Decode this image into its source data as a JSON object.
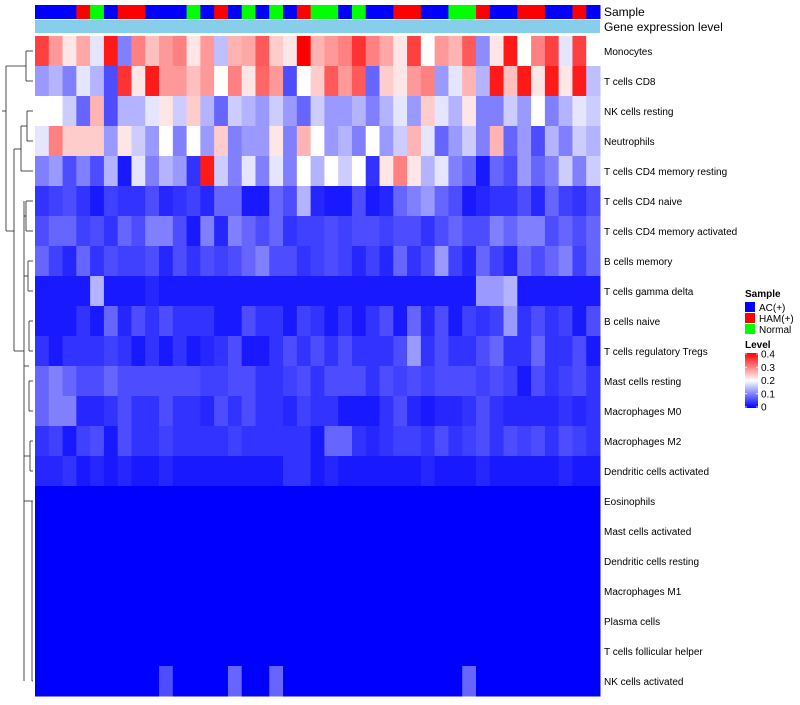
{
  "chart_data": {
    "type": "heatmap",
    "annotation_row_labels": [
      "Sample",
      "Gene expression level"
    ],
    "cell_types": [
      "Monocytes",
      "T cells CD8",
      "NK cells resting",
      "Neutrophils",
      "T cells CD4 memory resting",
      "T cells CD4 naive",
      "T cells CD4 memory activated",
      "B cells memory",
      "T cells gamma delta",
      "B cells naive",
      "T cells regulatory  Tregs",
      "Mast cells resting",
      "Macrophages M0",
      "Macrophages M2",
      "Dendritic cells activated",
      "Eosinophils",
      "Mast cells activated",
      "Dendritic cells resting",
      "Macrophages M1",
      "Plasma cells",
      "T cells follicular helper",
      "NK cells activated"
    ],
    "sample_groups": [
      "AC(+)",
      "AC(+)",
      "AC(+)",
      "HAM(+)",
      "Normal",
      "AC(+)",
      "HAM(+)",
      "HAM(+)",
      "AC(+)",
      "AC(+)",
      "AC(+)",
      "Normal",
      "AC(+)",
      "HAM(+)",
      "AC(+)",
      "Normal",
      "AC(+)",
      "Normal",
      "AC(+)",
      "HAM(+)",
      "Normal",
      "Normal",
      "AC(+)",
      "Normal",
      "AC(+)",
      "AC(+)",
      "HAM(+)",
      "HAM(+)",
      "AC(+)",
      "AC(+)",
      "Normal",
      "Normal",
      "HAM(+)",
      "AC(+)",
      "AC(+)",
      "HAM(+)",
      "HAM(+)",
      "AC(+)",
      "AC(+)",
      "HAM(+)",
      "AC(+)"
    ],
    "values": [
      [
        0.35,
        0.28,
        0.22,
        0.27,
        0.18,
        0.38,
        0.1,
        0.3,
        0.25,
        0.28,
        0.3,
        0.22,
        0.28,
        0.15,
        0.26,
        0.27,
        0.33,
        0.24,
        0.22,
        0.4,
        0.26,
        0.28,
        0.3,
        0.36,
        0.3,
        0.27,
        0.22,
        0.35,
        0.2,
        0.28,
        0.26,
        0.33,
        0.11,
        0.22,
        0.38,
        0.2,
        0.3,
        0.35,
        0.18,
        0.35,
        0.2
      ],
      [
        0.12,
        0.14,
        0.1,
        0.18,
        0.14,
        0.06,
        0.36,
        0.22,
        0.38,
        0.28,
        0.28,
        0.25,
        0.28,
        0.2,
        0.3,
        0.22,
        0.32,
        0.28,
        0.06,
        0.2,
        0.24,
        0.33,
        0.28,
        0.33,
        0.08,
        0.24,
        0.22,
        0.28,
        0.3,
        0.12,
        0.18,
        0.26,
        0.14,
        0.38,
        0.25,
        0.38,
        0.22,
        0.38,
        0.22,
        0.38,
        0.15
      ],
      [
        0.2,
        0.2,
        0.16,
        0.08,
        0.26,
        0.06,
        0.14,
        0.14,
        0.18,
        0.22,
        0.16,
        0.24,
        0.14,
        0.08,
        0.16,
        0.14,
        0.12,
        0.16,
        0.12,
        0.08,
        0.16,
        0.12,
        0.12,
        0.14,
        0.1,
        0.14,
        0.18,
        0.12,
        0.24,
        0.18,
        0.14,
        0.22,
        0.1,
        0.1,
        0.16,
        0.12,
        0.2,
        0.1,
        0.14,
        0.18,
        0.16
      ],
      [
        0.18,
        0.3,
        0.24,
        0.24,
        0.24,
        0.12,
        0.22,
        0.16,
        0.12,
        0.2,
        0.1,
        0.2,
        0.12,
        0.24,
        0.1,
        0.12,
        0.12,
        0.22,
        0.1,
        0.26,
        0.2,
        0.12,
        0.14,
        0.1,
        0.2,
        0.12,
        0.16,
        0.26,
        0.18,
        0.08,
        0.12,
        0.16,
        0.1,
        0.26,
        0.08,
        0.12,
        0.06,
        0.14,
        0.1,
        0.16,
        0.14
      ],
      [
        0.1,
        0.12,
        0.06,
        0.1,
        0.06,
        0.14,
        0.02,
        0.18,
        0.1,
        0.14,
        0.12,
        0.04,
        0.38,
        0.16,
        0.1,
        0.18,
        0.1,
        0.18,
        0.1,
        0.2,
        0.14,
        0.2,
        0.16,
        0.2,
        0.04,
        0.22,
        0.3,
        0.22,
        0.14,
        0.18,
        0.1,
        0.08,
        0.02,
        0.08,
        0.06,
        0.12,
        0.08,
        0.1,
        0.16,
        0.1,
        0.16
      ],
      [
        0.04,
        0.05,
        0.06,
        0.04,
        0.02,
        0.05,
        0.04,
        0.04,
        0.06,
        0.03,
        0.04,
        0.05,
        0.03,
        0.08,
        0.08,
        0.02,
        0.02,
        0.08,
        0.06,
        0.14,
        0.03,
        0.02,
        0.02,
        0.06,
        0.02,
        0.03,
        0.08,
        0.1,
        0.12,
        0.08,
        0.06,
        0.02,
        0.03,
        0.04,
        0.04,
        0.06,
        0.03,
        0.08,
        0.05,
        0.04,
        0.06
      ],
      [
        0.06,
        0.08,
        0.08,
        0.05,
        0.06,
        0.04,
        0.08,
        0.06,
        0.1,
        0.1,
        0.06,
        0.02,
        0.1,
        0.03,
        0.1,
        0.08,
        0.06,
        0.08,
        0.04,
        0.05,
        0.05,
        0.06,
        0.05,
        0.06,
        0.06,
        0.05,
        0.06,
        0.06,
        0.04,
        0.06,
        0.08,
        0.06,
        0.06,
        0.1,
        0.08,
        0.1,
        0.1,
        0.06,
        0.08,
        0.06,
        0.08
      ],
      [
        0.08,
        0.05,
        0.03,
        0.08,
        0.04,
        0.06,
        0.05,
        0.05,
        0.06,
        0.03,
        0.06,
        0.04,
        0.06,
        0.05,
        0.06,
        0.08,
        0.1,
        0.06,
        0.06,
        0.04,
        0.05,
        0.06,
        0.05,
        0.03,
        0.05,
        0.03,
        0.08,
        0.04,
        0.06,
        0.12,
        0.05,
        0.03,
        0.08,
        0.05,
        0.03,
        0.08,
        0.06,
        0.08,
        0.1,
        0.05,
        0.08
      ],
      [
        0.02,
        0.02,
        0.02,
        0.02,
        0.14,
        0.02,
        0.02,
        0.02,
        0.03,
        0.02,
        0.02,
        0.02,
        0.02,
        0.02,
        0.02,
        0.02,
        0.02,
        0.02,
        0.02,
        0.02,
        0.02,
        0.02,
        0.02,
        0.02,
        0.02,
        0.02,
        0.02,
        0.02,
        0.02,
        0.02,
        0.02,
        0.02,
        0.12,
        0.12,
        0.14,
        0.02,
        0.02,
        0.02,
        0.02,
        0.02,
        0.02
      ],
      [
        0.02,
        0.02,
        0.02,
        0.04,
        0.02,
        0.08,
        0.03,
        0.06,
        0.04,
        0.06,
        0.04,
        0.04,
        0.04,
        0.02,
        0.02,
        0.06,
        0.04,
        0.04,
        0.02,
        0.05,
        0.04,
        0.02,
        0.04,
        0.02,
        0.04,
        0.06,
        0.02,
        0.08,
        0.03,
        0.06,
        0.02,
        0.05,
        0.04,
        0.05,
        0.12,
        0.04,
        0.06,
        0.04,
        0.05,
        0.02,
        0.06
      ],
      [
        0.04,
        0.02,
        0.04,
        0.04,
        0.04,
        0.05,
        0.04,
        0.02,
        0.04,
        0.02,
        0.04,
        0.02,
        0.03,
        0.04,
        0.06,
        0.02,
        0.02,
        0.04,
        0.06,
        0.04,
        0.06,
        0.04,
        0.06,
        0.04,
        0.04,
        0.04,
        0.06,
        0.12,
        0.04,
        0.06,
        0.04,
        0.04,
        0.06,
        0.08,
        0.04,
        0.04,
        0.08,
        0.04,
        0.04,
        0.06,
        0.02
      ],
      [
        0.08,
        0.1,
        0.08,
        0.06,
        0.06,
        0.08,
        0.06,
        0.06,
        0.06,
        0.06,
        0.06,
        0.06,
        0.05,
        0.05,
        0.06,
        0.06,
        0.04,
        0.04,
        0.05,
        0.06,
        0.04,
        0.06,
        0.06,
        0.06,
        0.04,
        0.06,
        0.05,
        0.06,
        0.05,
        0.06,
        0.06,
        0.06,
        0.05,
        0.06,
        0.05,
        0.02,
        0.06,
        0.04,
        0.05,
        0.06,
        0.04
      ],
      [
        0.08,
        0.1,
        0.1,
        0.03,
        0.03,
        0.04,
        0.06,
        0.04,
        0.04,
        0.06,
        0.04,
        0.04,
        0.03,
        0.06,
        0.04,
        0.06,
        0.04,
        0.04,
        0.03,
        0.05,
        0.04,
        0.04,
        0.02,
        0.02,
        0.02,
        0.04,
        0.06,
        0.03,
        0.02,
        0.03,
        0.03,
        0.04,
        0.06,
        0.04,
        0.03,
        0.03,
        0.03,
        0.03,
        0.04,
        0.03,
        0.04
      ],
      [
        0.04,
        0.05,
        0.02,
        0.05,
        0.06,
        0.02,
        0.06,
        0.04,
        0.04,
        0.05,
        0.04,
        0.04,
        0.04,
        0.04,
        0.05,
        0.04,
        0.04,
        0.04,
        0.04,
        0.04,
        0.02,
        0.08,
        0.08,
        0.04,
        0.03,
        0.04,
        0.05,
        0.05,
        0.04,
        0.06,
        0.04,
        0.05,
        0.06,
        0.04,
        0.06,
        0.05,
        0.06,
        0.04,
        0.06,
        0.05,
        0.04
      ],
      [
        0.03,
        0.03,
        0.04,
        0.02,
        0.03,
        0.02,
        0.03,
        0.02,
        0.02,
        0.03,
        0.02,
        0.02,
        0.02,
        0.02,
        0.02,
        0.02,
        0.02,
        0.02,
        0.04,
        0.04,
        0.02,
        0.03,
        0.02,
        0.02,
        0.02,
        0.02,
        0.02,
        0.02,
        0.03,
        0.02,
        0.02,
        0.02,
        0.03,
        0.02,
        0.02,
        0.02,
        0.02,
        0.02,
        0.03,
        0.02,
        0.02
      ],
      [
        0,
        0,
        0,
        0,
        0,
        0,
        0,
        0,
        0,
        0,
        0,
        0,
        0,
        0,
        0,
        0,
        0,
        0,
        0,
        0,
        0,
        0,
        0,
        0,
        0,
        0,
        0,
        0,
        0,
        0,
        0,
        0,
        0,
        0,
        0,
        0,
        0,
        0,
        0,
        0,
        0
      ],
      [
        0,
        0,
        0,
        0,
        0,
        0,
        0,
        0,
        0,
        0,
        0,
        0,
        0,
        0,
        0,
        0,
        0,
        0,
        0,
        0,
        0,
        0,
        0,
        0,
        0,
        0,
        0,
        0,
        0,
        0,
        0,
        0,
        0,
        0,
        0,
        0,
        0,
        0,
        0,
        0,
        0
      ],
      [
        0,
        0,
        0,
        0,
        0,
        0,
        0,
        0,
        0,
        0,
        0,
        0,
        0,
        0,
        0,
        0,
        0,
        0,
        0,
        0,
        0,
        0,
        0,
        0,
        0,
        0,
        0,
        0,
        0,
        0,
        0,
        0,
        0,
        0,
        0,
        0,
        0,
        0,
        0,
        0,
        0
      ],
      [
        0,
        0,
        0,
        0,
        0,
        0,
        0,
        0,
        0,
        0,
        0,
        0,
        0,
        0,
        0,
        0,
        0,
        0,
        0,
        0,
        0,
        0,
        0,
        0,
        0,
        0,
        0,
        0,
        0,
        0,
        0,
        0,
        0,
        0,
        0,
        0,
        0,
        0,
        0,
        0,
        0
      ],
      [
        0,
        0,
        0,
        0,
        0,
        0,
        0,
        0,
        0,
        0,
        0,
        0,
        0,
        0,
        0,
        0,
        0,
        0,
        0,
        0,
        0,
        0,
        0,
        0,
        0,
        0,
        0,
        0,
        0,
        0,
        0,
        0,
        0,
        0,
        0,
        0,
        0,
        0,
        0,
        0,
        0
      ],
      [
        0,
        0,
        0,
        0,
        0,
        0,
        0,
        0,
        0,
        0,
        0,
        0,
        0,
        0,
        0,
        0,
        0,
        0,
        0,
        0,
        0,
        0,
        0,
        0,
        0,
        0,
        0,
        0,
        0,
        0,
        0,
        0,
        0,
        0,
        0,
        0,
        0,
        0,
        0,
        0,
        0
      ],
      [
        0,
        0,
        0,
        0,
        0,
        0,
        0,
        0,
        0,
        0.06,
        0,
        0,
        0,
        0,
        0.08,
        0,
        0,
        0.08,
        0,
        0,
        0,
        0,
        0,
        0,
        0,
        0,
        0,
        0,
        0,
        0,
        0,
        0.08,
        0,
        0,
        0,
        0,
        0,
        0,
        0,
        0,
        0
      ]
    ],
    "value_range": [
      0,
      0.4
    ],
    "color_low": "#0000FF",
    "color_mid": "#FFFFFF",
    "color_high": "#FF0000",
    "legend": {
      "sample": {
        "title": "Sample",
        "entries": [
          {
            "label": "AC(+)",
            "color": "#0000FF"
          },
          {
            "label": "HAM(+)",
            "color": "#FF0000"
          },
          {
            "label": "Normal",
            "color": "#00FF00"
          }
        ]
      },
      "level": {
        "title": "Level",
        "ticks": [
          "0.4",
          "0.3",
          "0.2",
          "0.1",
          "0"
        ]
      }
    },
    "gene_expression_color": "#87CEEB",
    "row_dendrogram": true,
    "legend_placement": "right"
  }
}
